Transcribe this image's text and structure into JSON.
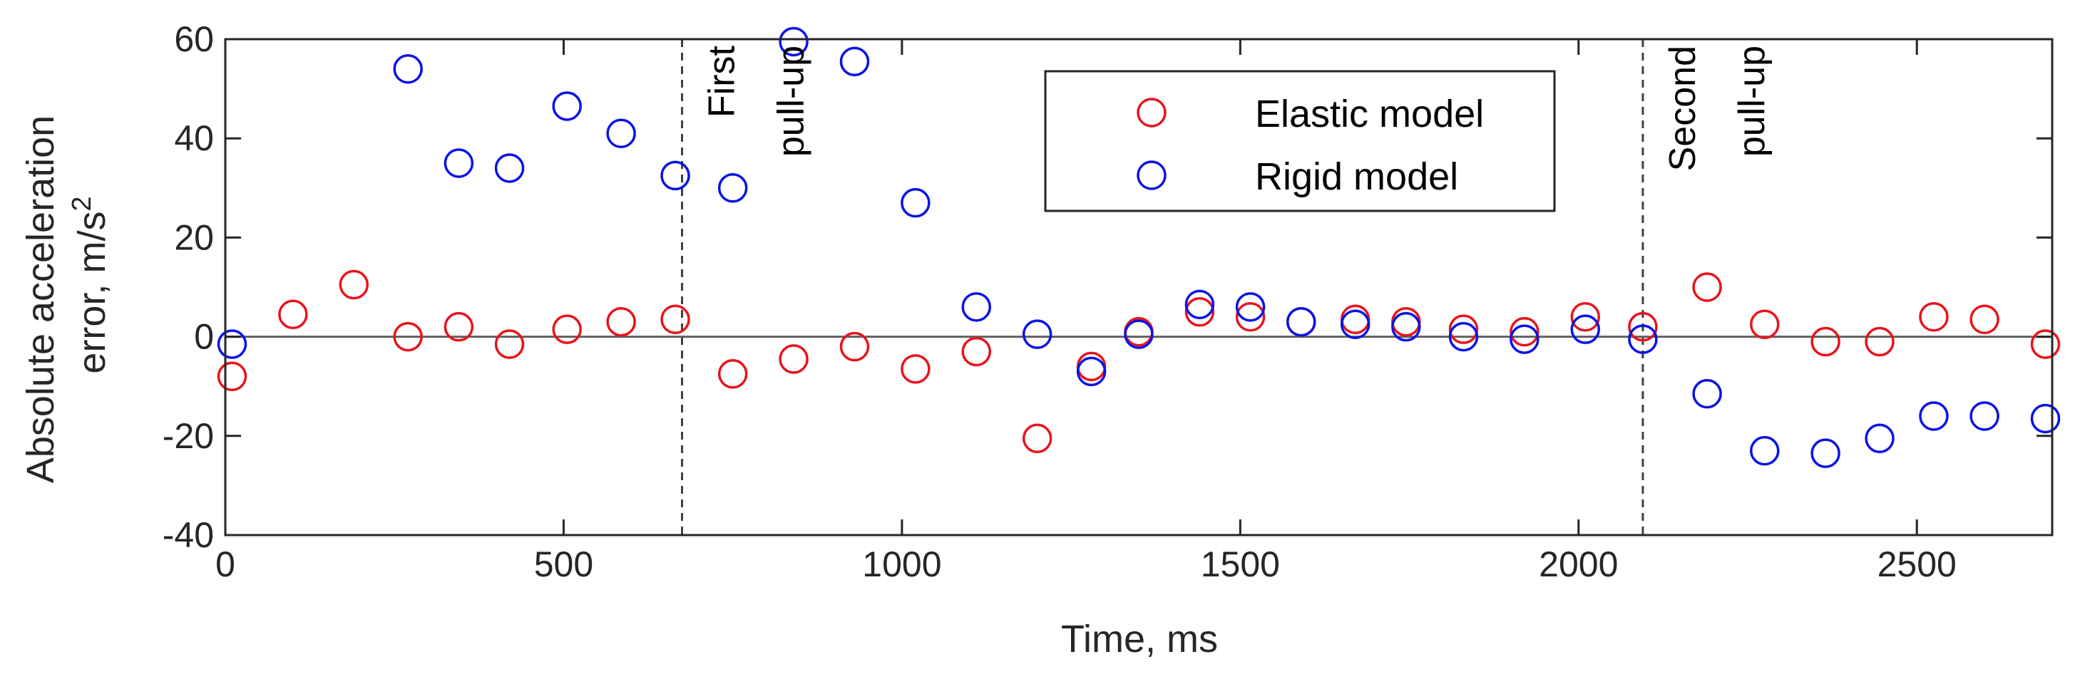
{
  "chart_data": {
    "type": "scatter",
    "xlabel": "Time, ms",
    "ylabel_line1": "Absolute acceleration",
    "ylabel_line2": "error, m/s",
    "ylabel_sup": "2",
    "xlim": [
      0,
      2700
    ],
    "ylim": [
      -40,
      60
    ],
    "xticks": [
      0,
      500,
      1000,
      1500,
      2000,
      2500
    ],
    "yticks": [
      -40,
      -20,
      0,
      20,
      40,
      60
    ],
    "zero_line": true,
    "grid": false,
    "legend_placement": "top-center",
    "markers": "open circles",
    "series": [
      {
        "name": "Elastic model",
        "color": "#e8141b",
        "x": [
          10,
          100,
          190,
          270,
          345,
          420,
          505,
          585,
          665,
          750,
          840,
          930,
          1020,
          1110,
          1200,
          1280,
          1350,
          1440,
          1515,
          1590,
          1670,
          1745,
          1830,
          1920,
          2010,
          2095,
          2190,
          2275,
          2365,
          2445,
          2525,
          2600,
          2690
        ],
        "y": [
          -8,
          4.5,
          10.5,
          0,
          2,
          -1.5,
          1.5,
          3,
          3.5,
          -7.5,
          -4.5,
          -2,
          -6.5,
          -3,
          -20.5,
          -6,
          1,
          5,
          4,
          3,
          3.5,
          3,
          1.5,
          1,
          4,
          2,
          10,
          2.5,
          -1,
          -1,
          4,
          3.5,
          -1.5
        ]
      },
      {
        "name": "Rigid model",
        "color": "#0a14e6",
        "x": [
          10,
          270,
          345,
          420,
          505,
          585,
          665,
          750,
          840,
          930,
          1020,
          1110,
          1200,
          1280,
          1350,
          1440,
          1515,
          1590,
          1670,
          1745,
          1830,
          1920,
          2010,
          2095,
          2190,
          2275,
          2365,
          2445,
          2525,
          2600,
          2690
        ],
        "y": [
          -1.5,
          54,
          35,
          34,
          46.5,
          41,
          32.5,
          30,
          59.5,
          55.5,
          27,
          6,
          0.5,
          -7,
          0.5,
          6.5,
          6,
          3,
          2.5,
          2,
          0,
          -0.5,
          1.5,
          -0.5,
          -11.5,
          -23,
          -23.5,
          -20.5,
          -16,
          -16,
          -16.5
        ]
      }
    ],
    "annotations": [
      {
        "x": 675,
        "line1": "First",
        "line2": "pull-up"
      },
      {
        "x": 2095,
        "line1": "Second",
        "line2": "pull-up"
      }
    ]
  }
}
